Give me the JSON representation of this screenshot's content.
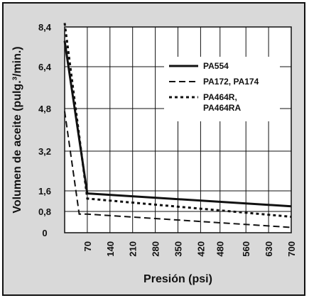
{
  "chart_data": {
    "type": "line",
    "xlabel": "Presión (psi)",
    "ylabel": "Volumen de aceite (pulg.³/min.)",
    "x_ticks": [
      "70",
      "140",
      "210",
      "280",
      "350",
      "420",
      "480",
      "560",
      "630",
      "700"
    ],
    "y_ticks": [
      "0",
      "0,8",
      "1,6",
      "3,2",
      "4,8",
      "6,4",
      "8,4"
    ],
    "y_tick_values": [
      0,
      0.8,
      1.6,
      3.2,
      4.8,
      6.4,
      8.4
    ],
    "x_range": [
      0,
      700
    ],
    "y_range": [
      0,
      8.4
    ],
    "grid": true,
    "legend_position": "top-right",
    "series": [
      {
        "name": "PA554",
        "style": "solid",
        "color": "#111111",
        "x": [
          0,
          70,
          700
        ],
        "y": [
          7.7,
          1.5,
          1.0
        ]
      },
      {
        "name": "PA172, PA174",
        "style": "dashed",
        "color": "#111111",
        "x": [
          0,
          45,
          70,
          700
        ],
        "y": [
          4.7,
          0.7,
          0.7,
          0.2
        ]
      },
      {
        "name": "PA464R,\nPA464RA",
        "style": "dotted",
        "color": "#111111",
        "x": [
          0,
          70,
          700
        ],
        "y": [
          8.6,
          1.3,
          0.6
        ]
      }
    ]
  }
}
